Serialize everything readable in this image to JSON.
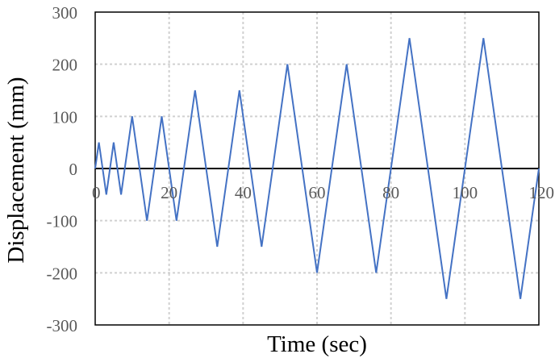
{
  "chart_data": {
    "type": "line",
    "title": "",
    "xlabel": "Time (sec)",
    "ylabel": "Displacement (mm)",
    "xlim": [
      0,
      120
    ],
    "ylim": [
      -300,
      300
    ],
    "xticks": [
      0,
      20,
      40,
      60,
      80,
      100,
      120
    ],
    "yticks": [
      300,
      200,
      100,
      0,
      -100,
      -200,
      -300
    ],
    "xtick_labels": [
      "0",
      "20",
      "40",
      "60",
      "80",
      "100",
      "120"
    ],
    "ytick_labels": [
      "300",
      "200",
      "100",
      "0",
      "-100",
      "-200",
      "-300"
    ],
    "grid": true,
    "legend": "none",
    "series": [
      {
        "color": "#4472C4",
        "x": [
          0,
          1,
          3,
          5,
          7,
          10,
          14,
          18,
          22,
          27,
          33,
          39,
          45,
          52,
          60,
          68,
          76,
          85,
          95,
          105,
          115,
          120
        ],
        "y": [
          0,
          50,
          -50,
          50,
          -50,
          100,
          -100,
          100,
          -100,
          150,
          -150,
          150,
          -150,
          200,
          -200,
          200,
          -200,
          250,
          -250,
          250,
          -250,
          0
        ]
      }
    ]
  }
}
